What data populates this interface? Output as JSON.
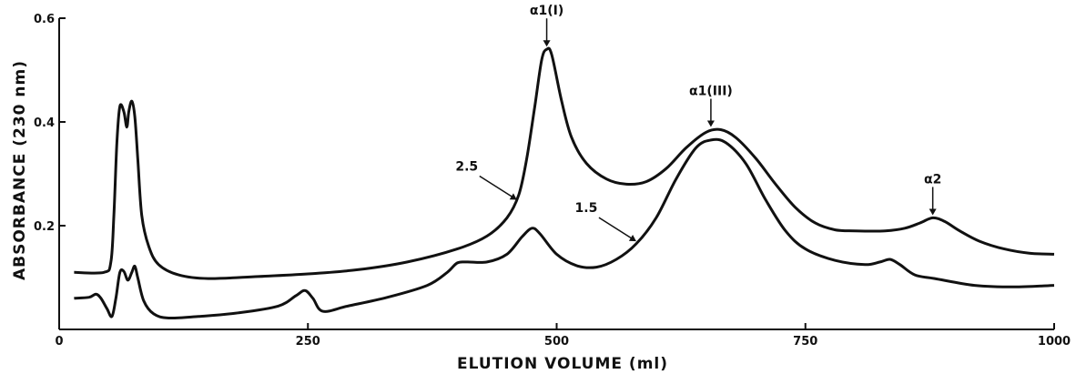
{
  "chart_data": {
    "type": "line",
    "title": "",
    "xlabel": "ELUTION VOLUME (ml)",
    "ylabel": "ABSORBANCE (230 nm)",
    "xlim": [
      0,
      1000
    ],
    "ylim": [
      0,
      0.6
    ],
    "x_ticks": [
      0,
      250,
      500,
      750,
      1000
    ],
    "x_tick_labels": [
      "0",
      "250",
      "500",
      "750",
      "1000"
    ],
    "y_ticks": [
      0.2,
      0.4,
      0.6
    ],
    "y_tick_labels": [
      "0.2",
      "0.4",
      "0.6"
    ],
    "grid": false,
    "series": [
      {
        "name": "2.5",
        "points": [
          [
            15,
            0.11
          ],
          [
            45,
            0.11
          ],
          [
            52,
            0.13
          ],
          [
            55,
            0.22
          ],
          [
            58,
            0.36
          ],
          [
            61,
            0.43
          ],
          [
            65,
            0.42
          ],
          [
            68,
            0.39
          ],
          [
            70,
            0.42
          ],
          [
            73,
            0.44
          ],
          [
            76,
            0.41
          ],
          [
            79,
            0.33
          ],
          [
            83,
            0.22
          ],
          [
            90,
            0.16
          ],
          [
            100,
            0.125
          ],
          [
            120,
            0.105
          ],
          [
            150,
            0.098
          ],
          [
            200,
            0.102
          ],
          [
            250,
            0.107
          ],
          [
            300,
            0.115
          ],
          [
            350,
            0.13
          ],
          [
            400,
            0.155
          ],
          [
            430,
            0.18
          ],
          [
            450,
            0.215
          ],
          [
            462,
            0.26
          ],
          [
            470,
            0.33
          ],
          [
            478,
            0.43
          ],
          [
            485,
            0.52
          ],
          [
            490,
            0.54
          ],
          [
            495,
            0.53
          ],
          [
            505,
            0.44
          ],
          [
            515,
            0.37
          ],
          [
            530,
            0.32
          ],
          [
            550,
            0.29
          ],
          [
            570,
            0.28
          ],
          [
            590,
            0.285
          ],
          [
            610,
            0.31
          ],
          [
            630,
            0.35
          ],
          [
            650,
            0.38
          ],
          [
            665,
            0.385
          ],
          [
            680,
            0.37
          ],
          [
            700,
            0.33
          ],
          [
            720,
            0.28
          ],
          [
            740,
            0.235
          ],
          [
            760,
            0.205
          ],
          [
            780,
            0.192
          ],
          [
            800,
            0.19
          ],
          [
            830,
            0.19
          ],
          [
            850,
            0.195
          ],
          [
            865,
            0.205
          ],
          [
            878,
            0.215
          ],
          [
            890,
            0.208
          ],
          [
            905,
            0.19
          ],
          [
            925,
            0.17
          ],
          [
            950,
            0.155
          ],
          [
            975,
            0.147
          ],
          [
            1000,
            0.145
          ]
        ]
      },
      {
        "name": "1.5",
        "points": [
          [
            15,
            0.06
          ],
          [
            30,
            0.062
          ],
          [
            37,
            0.068
          ],
          [
            42,
            0.06
          ],
          [
            48,
            0.04
          ],
          [
            53,
            0.025
          ],
          [
            57,
            0.06
          ],
          [
            61,
            0.11
          ],
          [
            65,
            0.112
          ],
          [
            69,
            0.095
          ],
          [
            73,
            0.11
          ],
          [
            76,
            0.122
          ],
          [
            79,
            0.1
          ],
          [
            85,
            0.055
          ],
          [
            95,
            0.03
          ],
          [
            110,
            0.022
          ],
          [
            140,
            0.025
          ],
          [
            180,
            0.032
          ],
          [
            220,
            0.045
          ],
          [
            238,
            0.065
          ],
          [
            247,
            0.075
          ],
          [
            255,
            0.06
          ],
          [
            265,
            0.035
          ],
          [
            290,
            0.045
          ],
          [
            330,
            0.062
          ],
          [
            370,
            0.085
          ],
          [
            390,
            0.11
          ],
          [
            400,
            0.128
          ],
          [
            410,
            0.13
          ],
          [
            430,
            0.13
          ],
          [
            450,
            0.145
          ],
          [
            465,
            0.178
          ],
          [
            475,
            0.195
          ],
          [
            483,
            0.185
          ],
          [
            500,
            0.145
          ],
          [
            520,
            0.123
          ],
          [
            540,
            0.12
          ],
          [
            560,
            0.135
          ],
          [
            580,
            0.165
          ],
          [
            600,
            0.215
          ],
          [
            620,
            0.29
          ],
          [
            640,
            0.35
          ],
          [
            655,
            0.365
          ],
          [
            670,
            0.36
          ],
          [
            690,
            0.32
          ],
          [
            710,
            0.25
          ],
          [
            730,
            0.19
          ],
          [
            750,
            0.155
          ],
          [
            780,
            0.133
          ],
          [
            810,
            0.125
          ],
          [
            825,
            0.13
          ],
          [
            835,
            0.135
          ],
          [
            845,
            0.125
          ],
          [
            860,
            0.105
          ],
          [
            880,
            0.098
          ],
          [
            920,
            0.085
          ],
          [
            960,
            0.082
          ],
          [
            1000,
            0.085
          ]
        ]
      }
    ],
    "annotations": [
      {
        "text": "α1(I)",
        "x": 490,
        "y": 0.54,
        "arrow": true
      },
      {
        "text": "α1(III)",
        "x": 655,
        "y": 0.385,
        "arrow": true
      },
      {
        "text": "α2",
        "x": 878,
        "y": 0.215,
        "arrow": true
      },
      {
        "text": "2.5",
        "arrow_to_series": "2.5",
        "x": 460,
        "y": 0.25
      },
      {
        "text": "1.5",
        "arrow_to_series": "1.5",
        "x": 580,
        "y": 0.17
      }
    ]
  }
}
